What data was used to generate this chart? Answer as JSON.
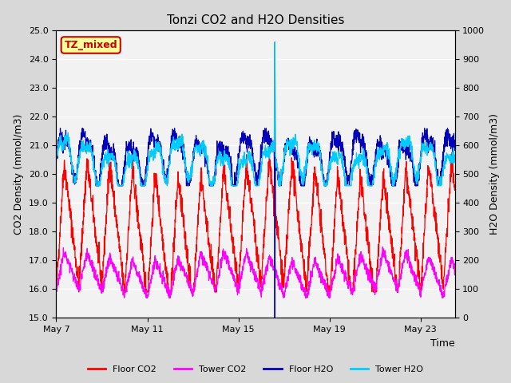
{
  "title": "Tonzi CO2 and H2O Densities",
  "xlabel": "Time",
  "ylabel_left": "CO2 Density (mmol/m3)",
  "ylabel_right": "H2O Density (mmol/m3)",
  "ylim_left": [
    15.0,
    25.0
  ],
  "ylim_right": [
    0,
    1000
  ],
  "yticks_left": [
    15.0,
    16.0,
    17.0,
    18.0,
    19.0,
    20.0,
    21.0,
    22.0,
    23.0,
    24.0,
    25.0
  ],
  "yticks_right": [
    0,
    100,
    200,
    300,
    400,
    500,
    600,
    700,
    800,
    900,
    1000
  ],
  "xtick_labels": [
    "May 7",
    "May 11",
    "May 15",
    "May 19",
    "May 23"
  ],
  "annotation_text": "TZ_mixed",
  "annotation_bg": "#ffff99",
  "annotation_border": "#cc0000",
  "annotation_text_color": "#cc0000",
  "colors": {
    "floor_co2": "#ff0000",
    "tower_co2": "#ff00ff",
    "floor_h2o": "#0000bb",
    "tower_h2o": "#00ccff"
  },
  "legend_labels": [
    "Floor CO2",
    "Tower CO2",
    "Floor H2O",
    "Tower H2O"
  ],
  "fig_bg_color": "#d8d8d8",
  "plot_bg": "#f2f2f2",
  "seed": 42,
  "n_points": 2000,
  "days": 18,
  "spike_day": 9.6,
  "figsize": [
    6.4,
    4.8
  ],
  "dpi": 100
}
